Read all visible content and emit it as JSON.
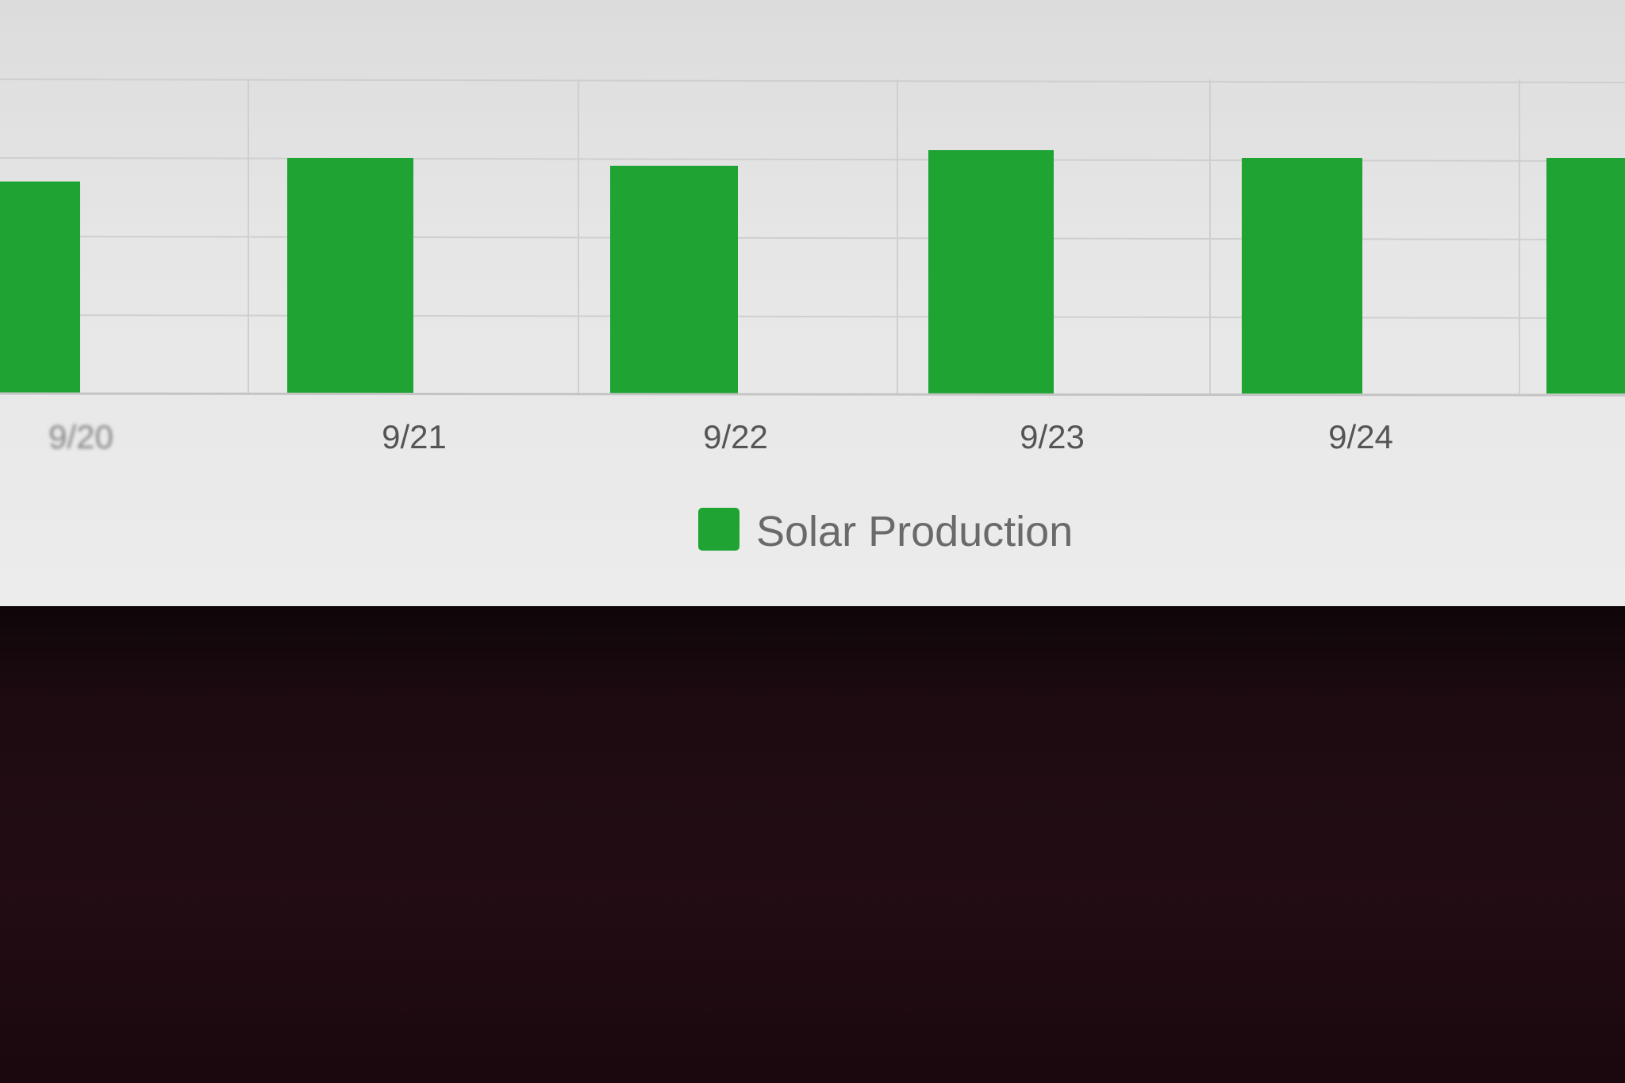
{
  "chart_data": {
    "type": "bar",
    "categories": [
      "9/20",
      "9/21",
      "9/22",
      "9/23",
      "9/24",
      ""
    ],
    "series": [
      {
        "name": "Solar Production",
        "values": [
          2.7,
          3.0,
          2.9,
          3.1,
          3.0,
          3.0
        ]
      }
    ],
    "title": "",
    "xlabel": "",
    "ylabel": "",
    "ylim": [
      0,
      4
    ],
    "grid": true,
    "legend_position": "bottom",
    "colors": {
      "bar": "#1fa433",
      "grid": "#cfcfcf",
      "background": "#e6e6e6"
    }
  }
}
